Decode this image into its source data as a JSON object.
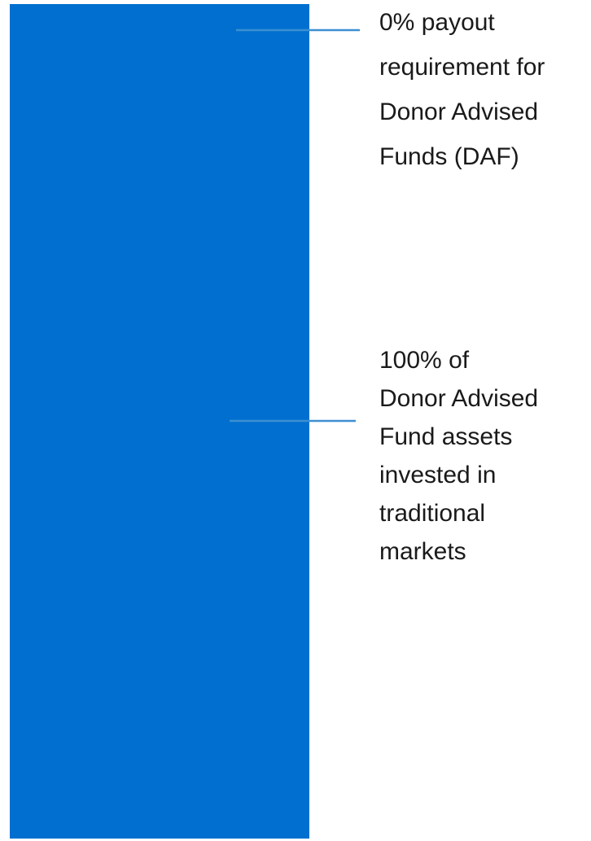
{
  "callouts": [
    {
      "lines": [
        "0% payout",
        "requirement for",
        "Donor Advised",
        "Funds (DAF)"
      ]
    },
    {
      "lines": [
        "100% of",
        "Donor Advised",
        "Fund assets",
        "invested in",
        "traditional",
        "markets"
      ]
    }
  ]
}
